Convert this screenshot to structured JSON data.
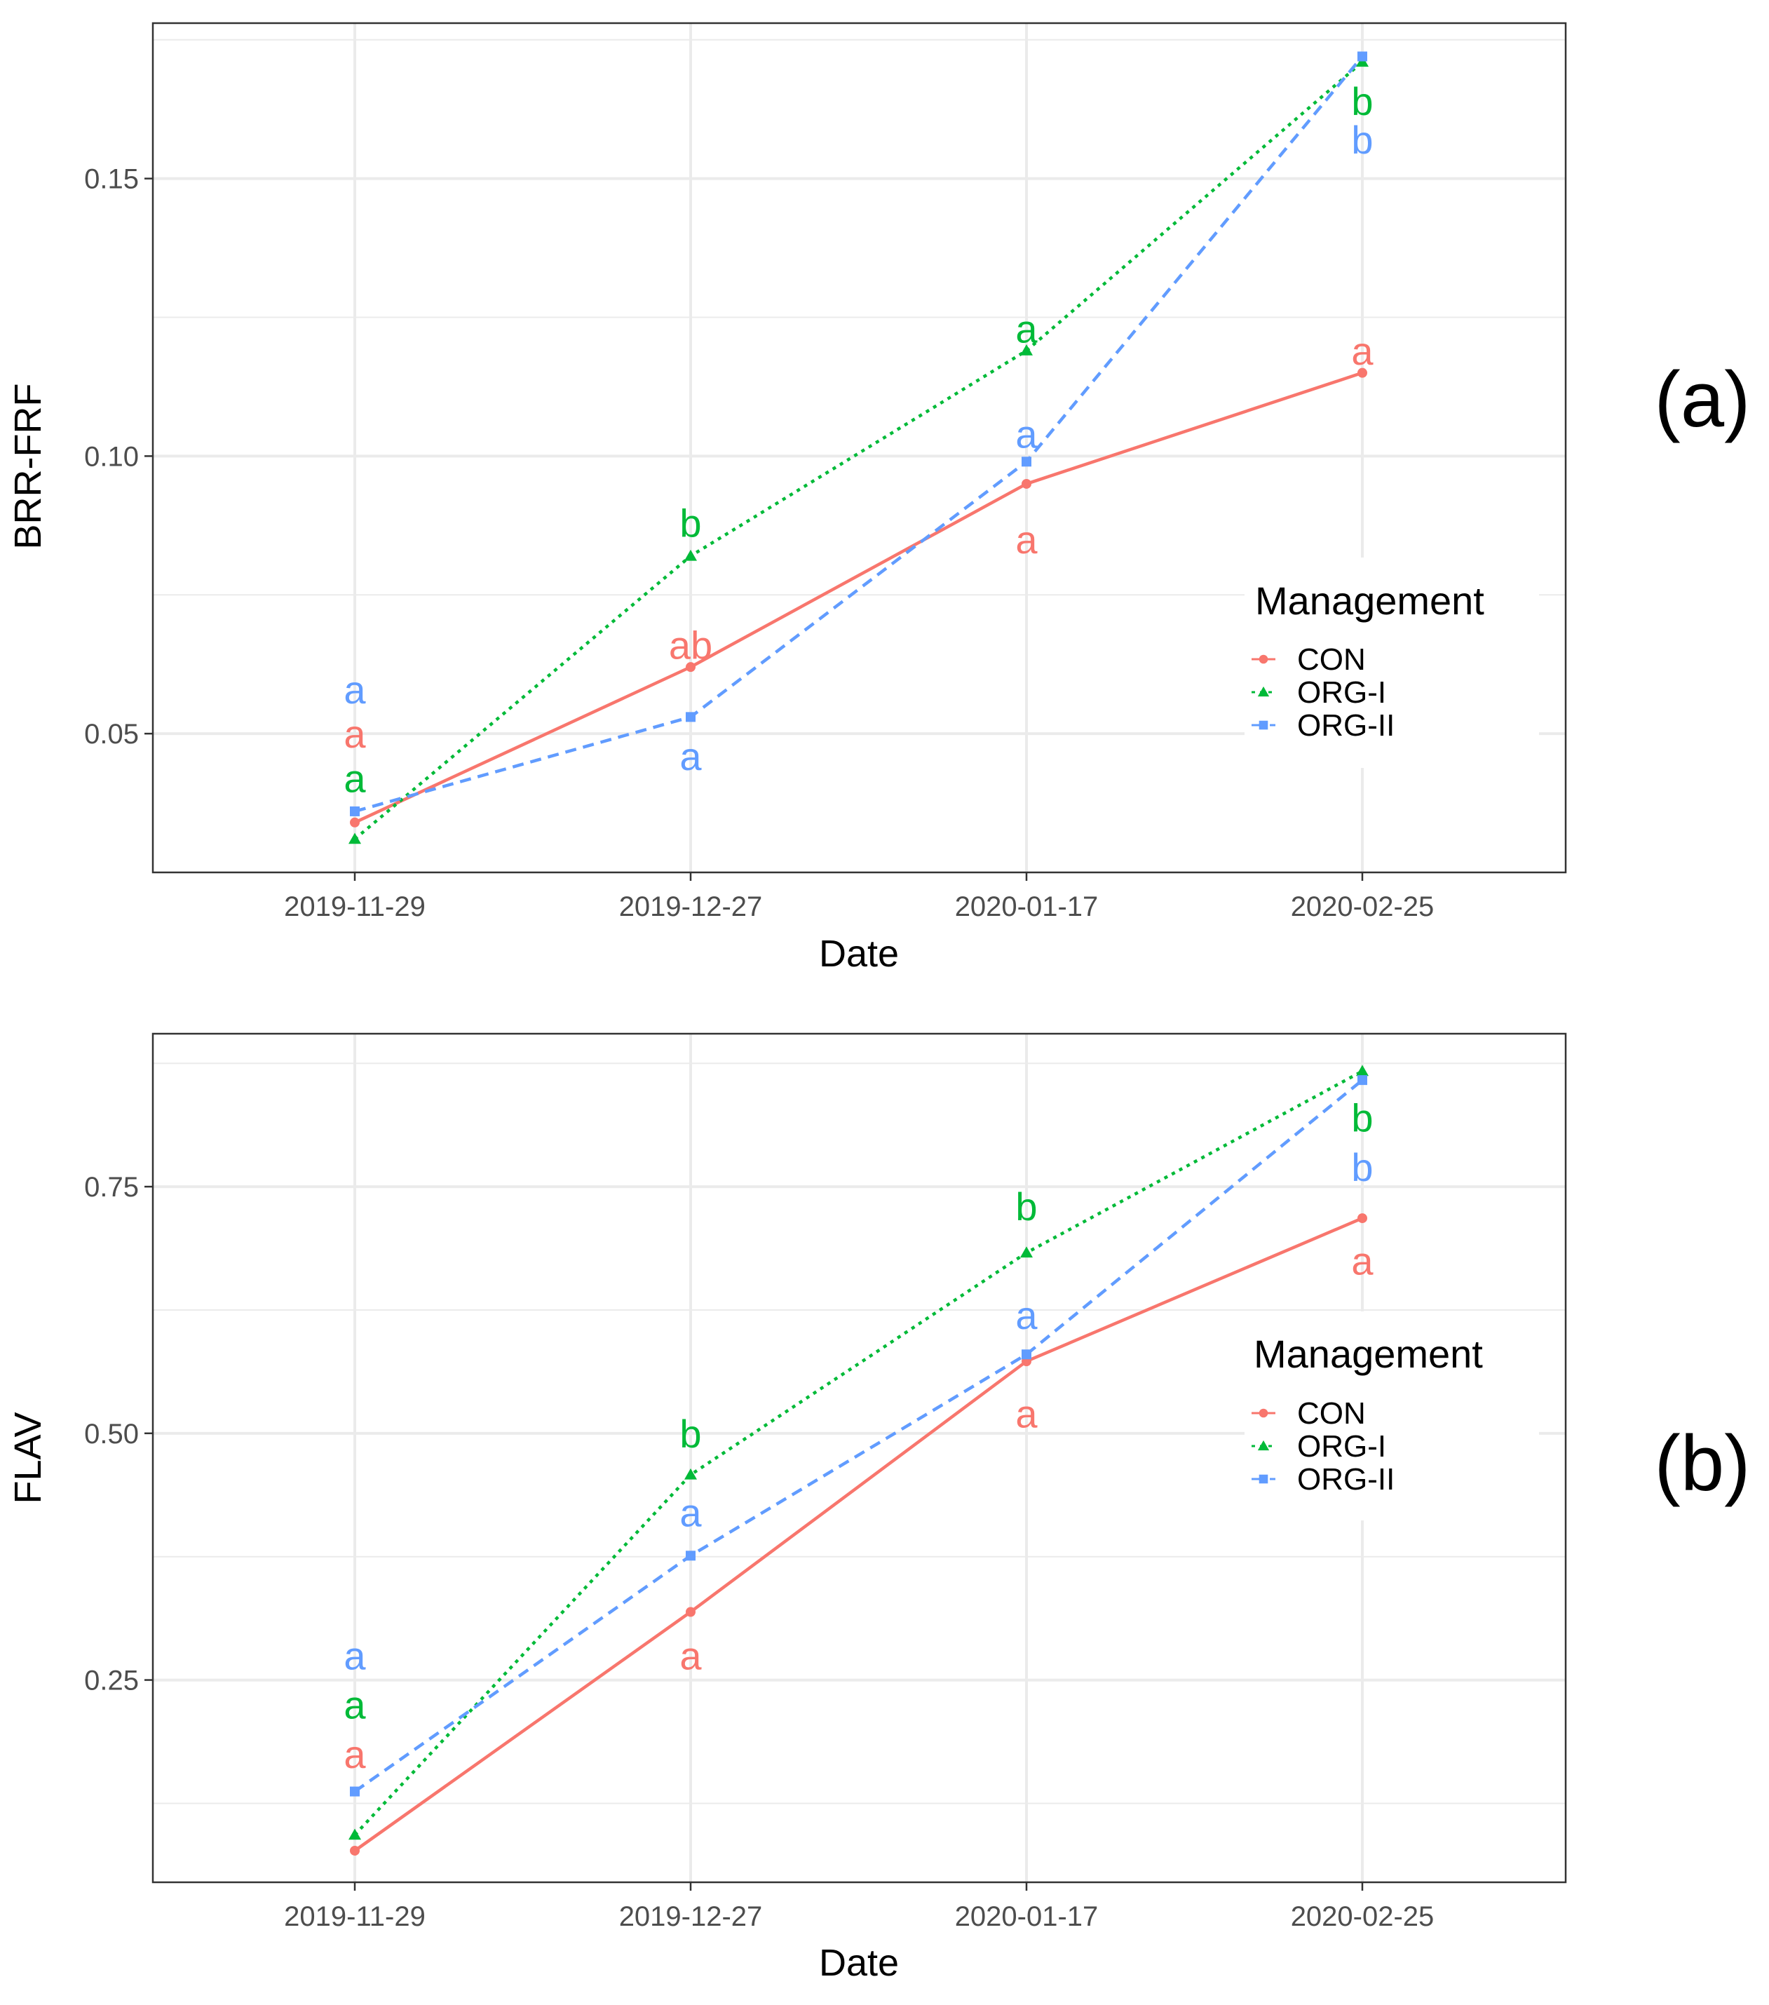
{
  "colors": {
    "CON": "#F8766D",
    "ORG-I": "#00BA38",
    "ORG-II": "#619CFF",
    "grid": "#ebebeb",
    "panel_border": "#333333"
  },
  "chart_data": [
    {
      "type": "line",
      "panel_label": "(a)",
      "xlabel": "Date",
      "ylabel": "BRR-FRF",
      "categories": [
        "2019-11-29",
        "2019-12-27",
        "2020-01-17",
        "2020-02-25"
      ],
      "ylim": [
        0.025,
        0.178
      ],
      "yticks": [
        0.05,
        0.1,
        0.15
      ],
      "ytick_labels": [
        "0.05",
        "0.10",
        "0.15"
      ],
      "grid": true,
      "legend": {
        "title": "Management",
        "position": "right-center",
        "entries": [
          "CON",
          "ORG-I",
          "ORG-II"
        ]
      },
      "series": [
        {
          "name": "CON",
          "values": [
            0.034,
            0.062,
            0.095,
            0.115
          ],
          "linestyle": "solid",
          "marker": "circle",
          "letters": [
            "a",
            "ab",
            "a",
            "a"
          ],
          "letter_pos": [
            0.05,
            0.066,
            0.085,
            0.119
          ]
        },
        {
          "name": "ORG-I",
          "values": [
            0.031,
            0.082,
            0.119,
            0.171
          ],
          "linestyle": "dotted",
          "marker": "triangle",
          "letters": [
            "a",
            "b",
            "a",
            "b"
          ],
          "letter_pos": [
            0.042,
            0.088,
            0.123,
            0.164
          ]
        },
        {
          "name": "ORG-II",
          "values": [
            0.036,
            0.053,
            0.099,
            0.172
          ],
          "linestyle": "dashed",
          "marker": "square",
          "letters": [
            "a",
            "a",
            "a",
            "b"
          ],
          "letter_pos": [
            0.058,
            0.046,
            0.104,
            0.157
          ]
        }
      ]
    },
    {
      "type": "line",
      "panel_label": "(b)",
      "xlabel": "Date",
      "ylabel": "FLAV",
      "categories": [
        "2019-11-29",
        "2019-12-27",
        "2020-01-17",
        "2020-02-25"
      ],
      "ylim": [
        0.045,
        0.905
      ],
      "yticks": [
        0.25,
        0.5,
        0.75
      ],
      "ytick_labels": [
        "0.25",
        "0.50",
        "0.75"
      ],
      "grid": true,
      "legend": {
        "title": "Management",
        "position": "right-center",
        "entries": [
          "CON",
          "ORG-I",
          "ORG-II"
        ]
      },
      "series": [
        {
          "name": "CON",
          "values": [
            0.077,
            0.319,
            0.573,
            0.718
          ],
          "linestyle": "solid",
          "marker": "circle",
          "letters": [
            "a",
            "a",
            "a",
            "a"
          ],
          "letter_pos": [
            0.175,
            0.275,
            0.52,
            0.675
          ]
        },
        {
          "name": "ORG-I",
          "values": [
            0.093,
            0.458,
            0.683,
            0.867
          ],
          "linestyle": "dotted",
          "marker": "triangle",
          "letters": [
            "a",
            "b",
            "b",
            "b"
          ],
          "letter_pos": [
            0.225,
            0.5,
            0.73,
            0.82
          ]
        },
        {
          "name": "ORG-II",
          "values": [
            0.137,
            0.376,
            0.58,
            0.858
          ],
          "linestyle": "dashed",
          "marker": "square",
          "letters": [
            "a",
            "a",
            "a",
            "b"
          ],
          "letter_pos": [
            0.275,
            0.42,
            0.62,
            0.77
          ]
        }
      ]
    }
  ]
}
